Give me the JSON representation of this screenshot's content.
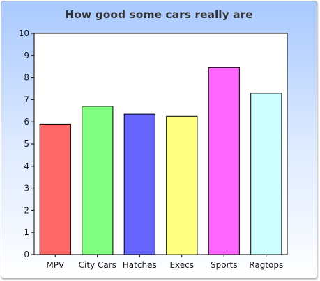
{
  "chart_data": {
    "type": "bar",
    "title": "How good some cars really are",
    "xlabel": "",
    "ylabel": "",
    "categories": [
      "MPV",
      "City Cars",
      "Hatches",
      "Execs",
      "Sports",
      "Ragtops"
    ],
    "values": [
      5.9,
      6.7,
      6.35,
      6.25,
      8.45,
      7.3
    ],
    "colors": [
      "#ff6666",
      "#80ff80",
      "#6666ff",
      "#ffff80",
      "#ff66ff",
      "#ccffff"
    ],
    "ylim": [
      0,
      10
    ],
    "yticks": [
      "0",
      "1",
      "2",
      "3",
      "4",
      "5",
      "6",
      "7",
      "8",
      "9",
      "10"
    ],
    "grid": false,
    "legend": "none"
  }
}
